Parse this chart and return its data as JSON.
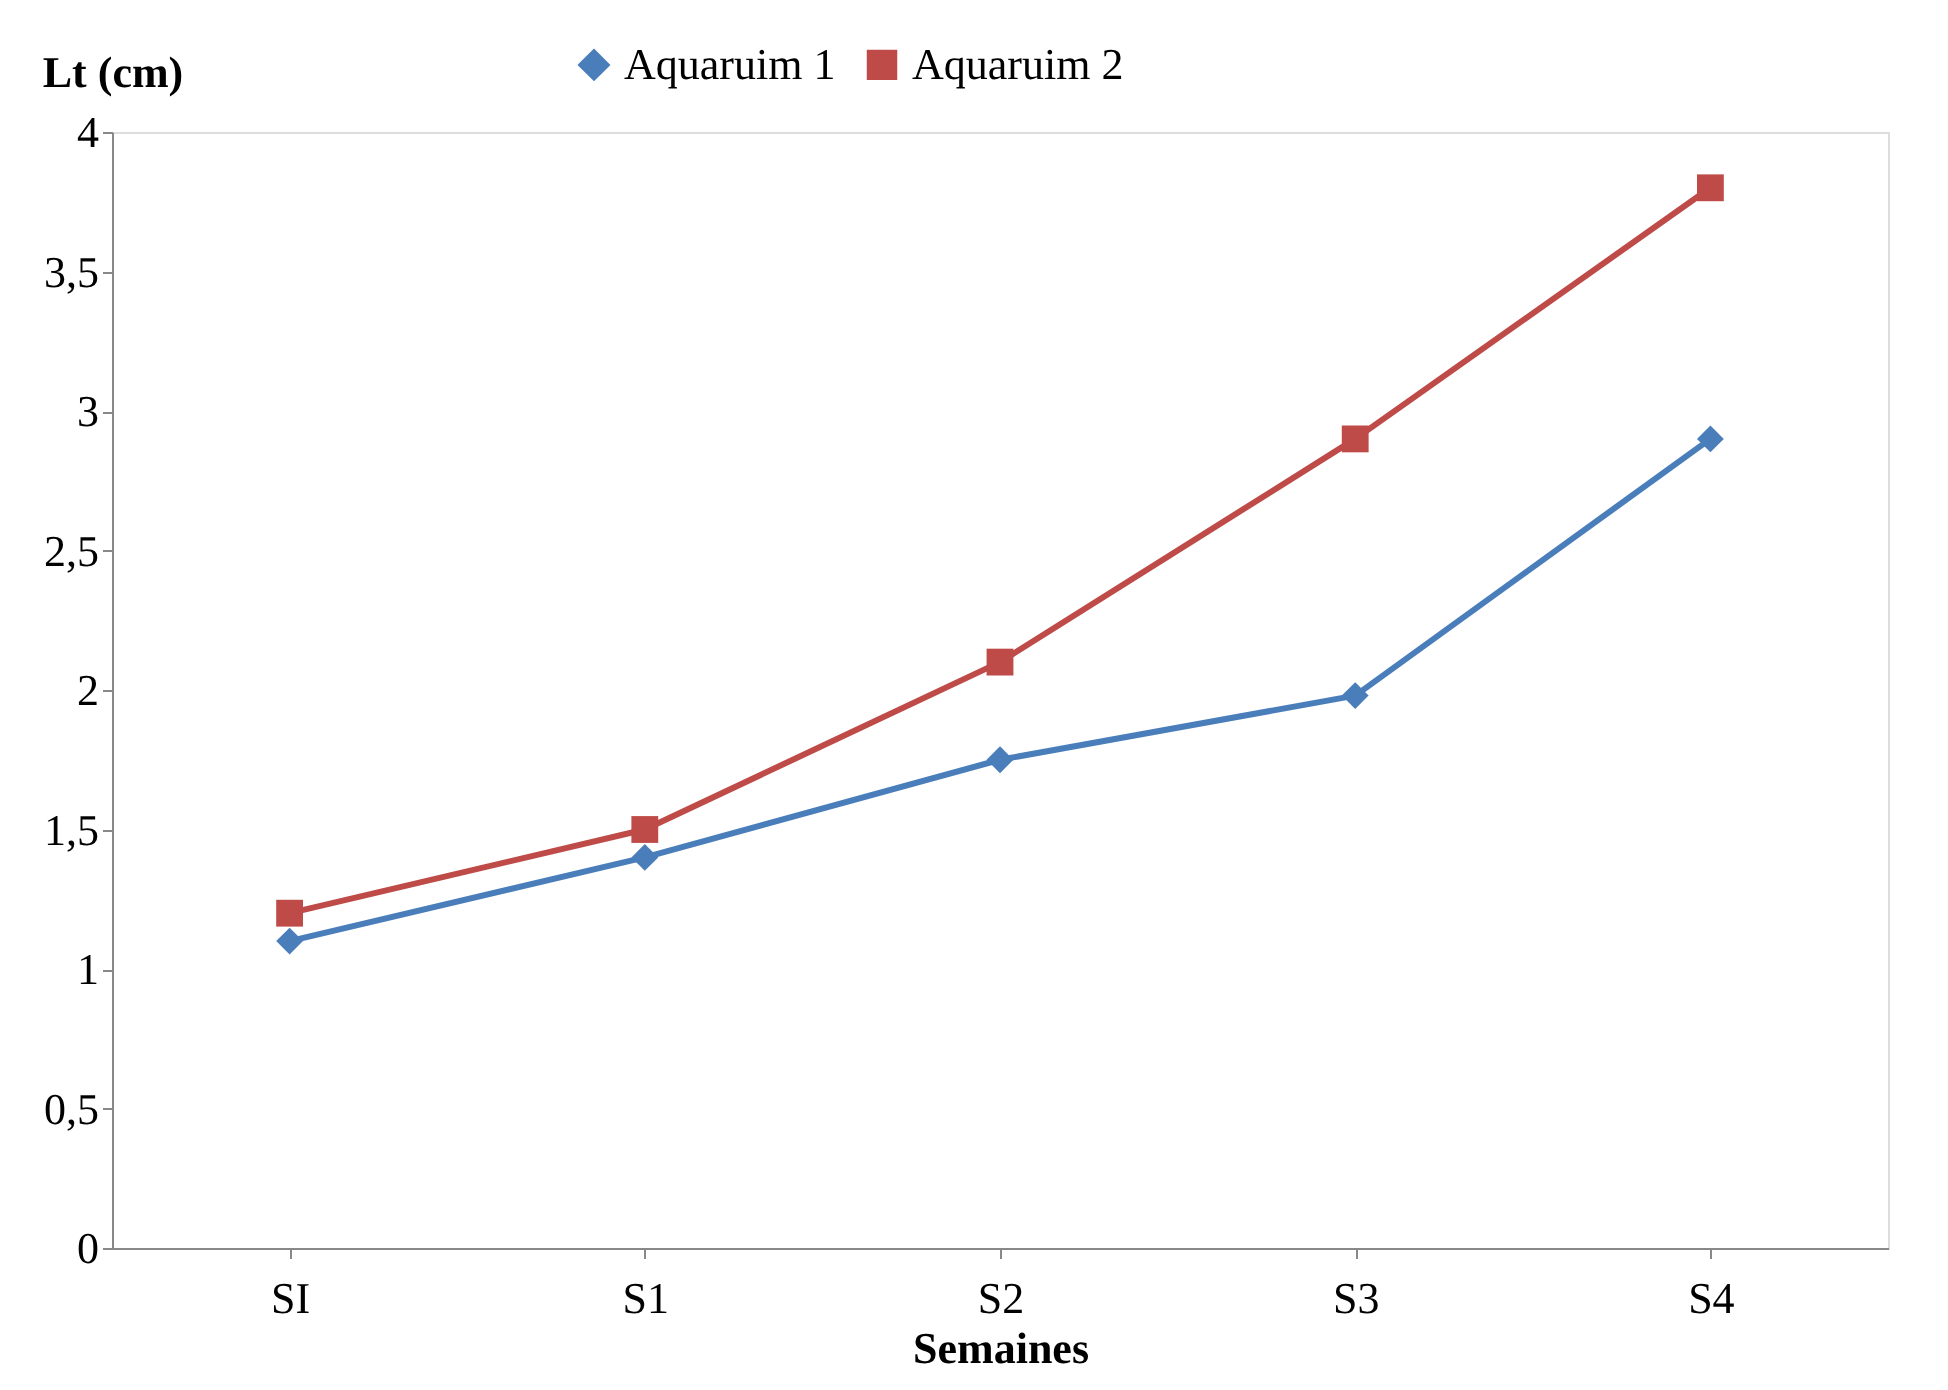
{
  "chart_data": {
    "type": "line",
    "ylabel": "Lt (cm)",
    "xlabel": "Semaines",
    "categories": [
      "SI",
      "S1",
      "S2",
      "S3",
      "S4"
    ],
    "series": [
      {
        "name": "Aquaruim 1",
        "color": "#4a7ebb",
        "marker": "diamond",
        "values": [
          1.1,
          1.4,
          1.75,
          1.98,
          2.9
        ]
      },
      {
        "name": "Aquaruim 2",
        "color": "#be4b48",
        "marker": "square",
        "values": [
          1.2,
          1.5,
          2.1,
          2.9,
          3.8
        ]
      }
    ],
    "ylim": [
      0,
      4
    ],
    "yticks": [
      0,
      {
        "value": 0.5,
        "label": "0,5"
      },
      1,
      {
        "value": 1.5,
        "label": "1,5"
      },
      2,
      {
        "value": 2.5,
        "label": "2,5"
      },
      3,
      {
        "value": 3.5,
        "label": "3,5"
      },
      4
    ],
    "grid": false,
    "legend": "top",
    "line_style": "solid"
  }
}
